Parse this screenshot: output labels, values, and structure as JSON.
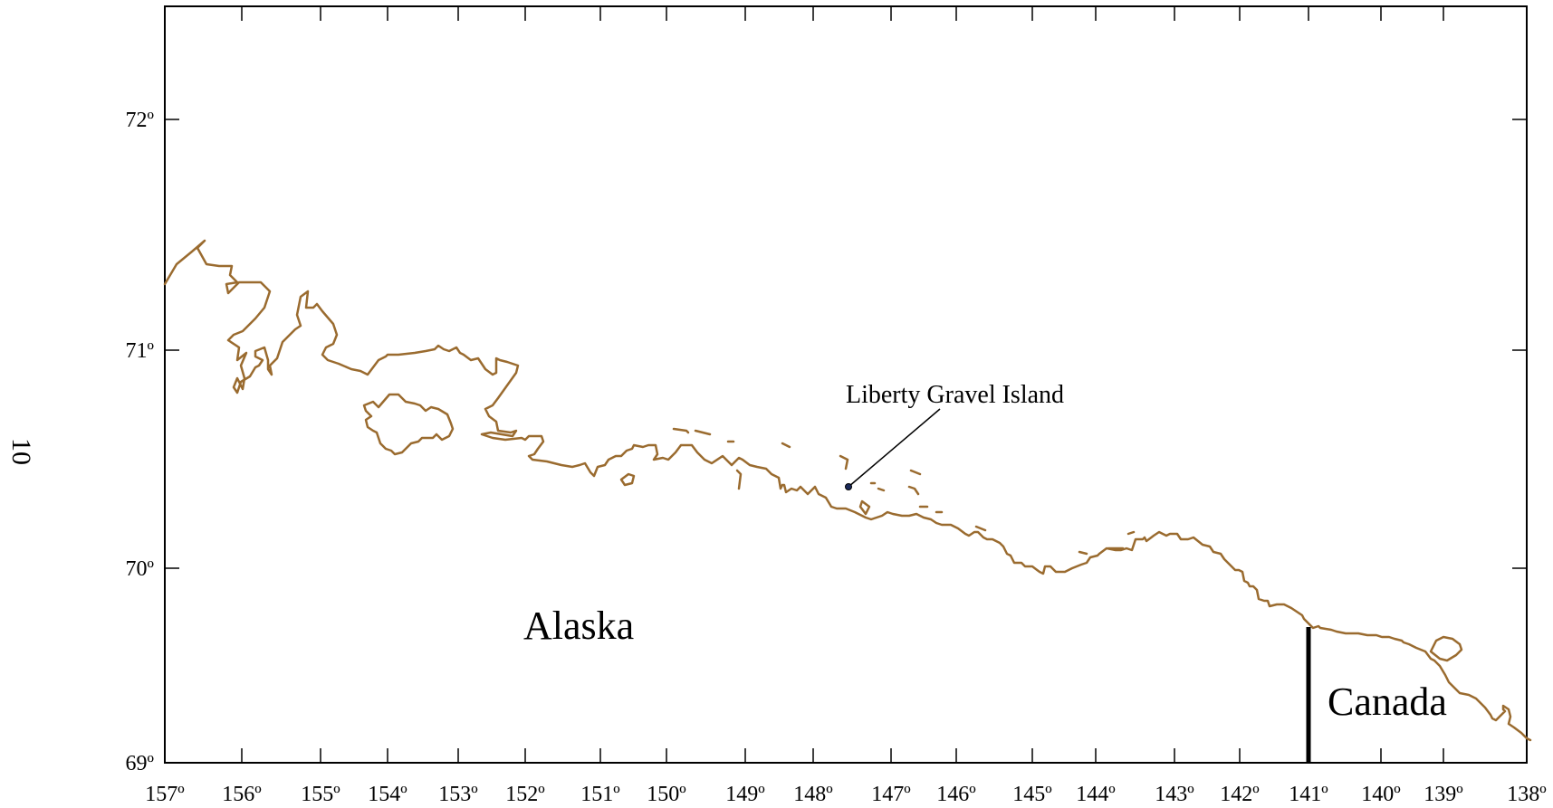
{
  "map": {
    "x_tick_labels": [
      "157º",
      "156º",
      "155º",
      "154º",
      "153º",
      "152º",
      "151º",
      "150º",
      "149º",
      "148º",
      "147º",
      "146º",
      "145º",
      "144º",
      "143º",
      "142º",
      "141º",
      "140º",
      "139º",
      "138º"
    ],
    "y_tick_labels": [
      "69º",
      "70º",
      "71º",
      "72º"
    ],
    "region_labels": {
      "alaska": "Alaska",
      "canada": "Canada"
    },
    "site_label": "Liberty Gravel Island",
    "page_number": "10",
    "colors": {
      "coastline": "#9a6b2f",
      "frame": "#000000",
      "border": "#000000"
    }
  }
}
